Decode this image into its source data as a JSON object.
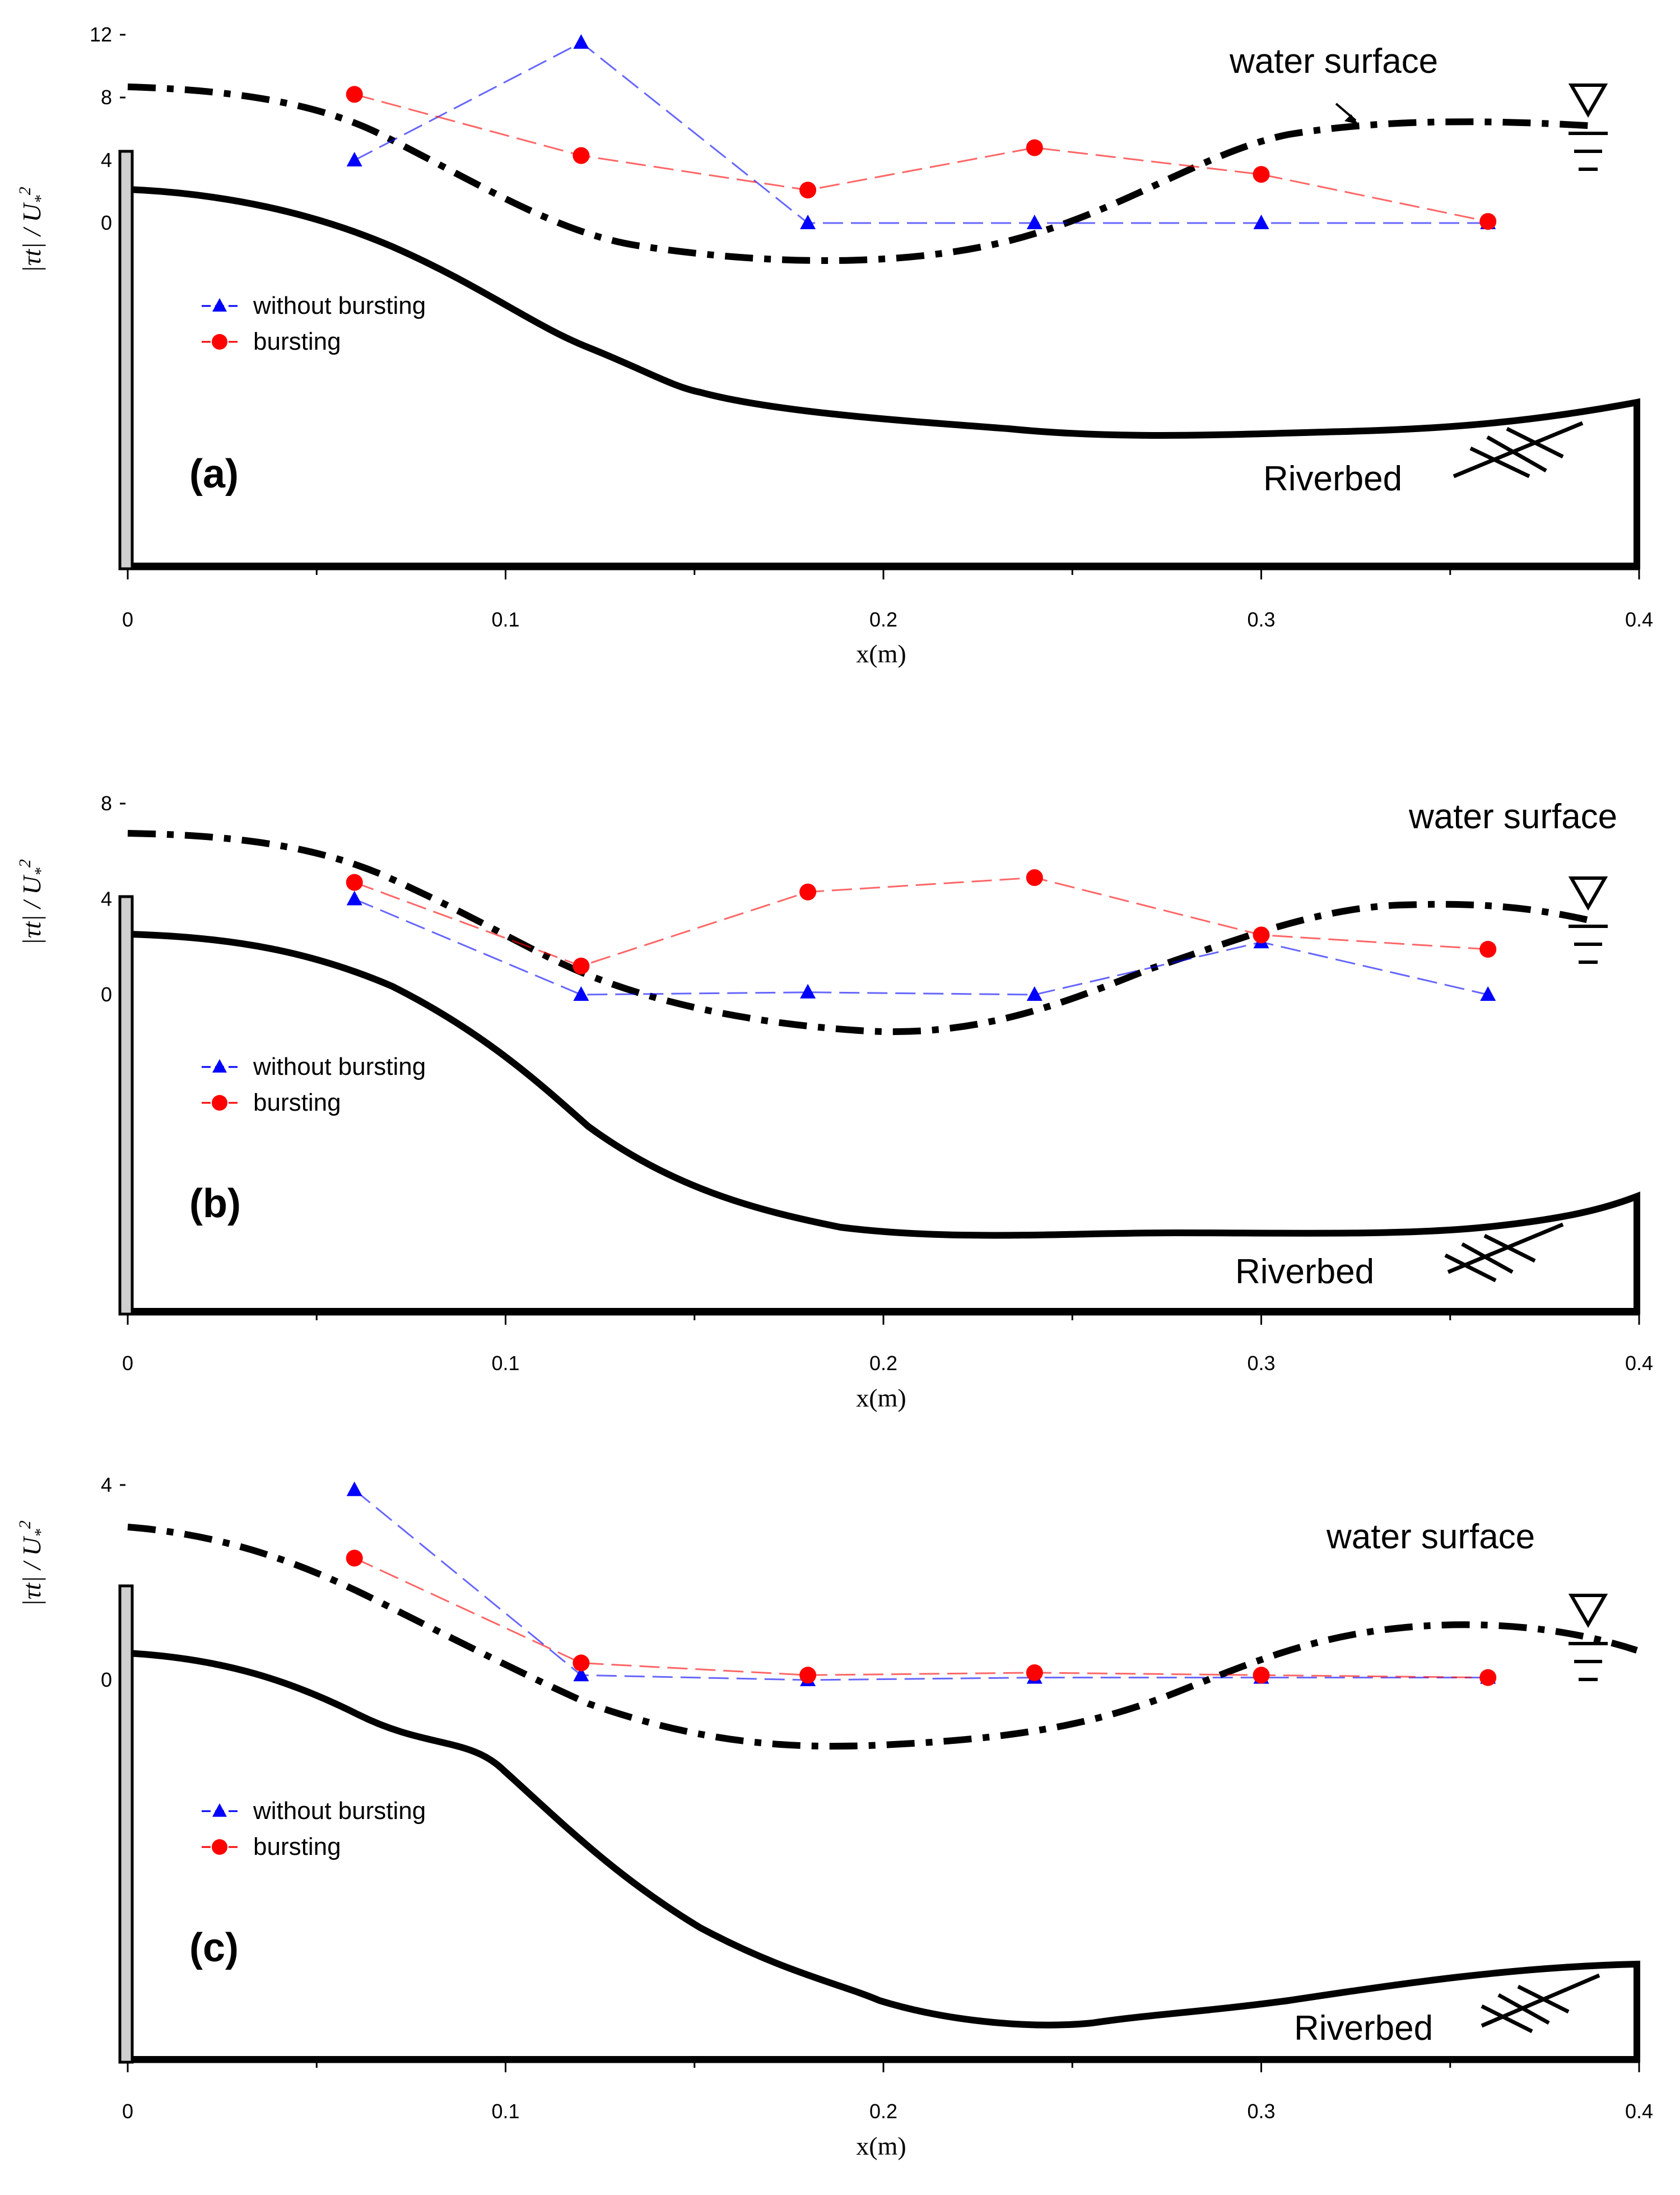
{
  "chart_data": [
    {
      "type": "line",
      "panel_label": "(a)",
      "xlabel": "x(m)",
      "ylabel": "|τt| / U*²",
      "ylabel_main": "τt",
      "ylabel_rest": " / U",
      "ylabel_sub": "*",
      "ylabel_sup": "2",
      "xlim": [
        0,
        0.4
      ],
      "ylim": [
        0,
        12
      ],
      "xticks": [
        "0",
        "0.1",
        "0.2",
        "0.3",
        "0.4"
      ],
      "yticks": [
        "0",
        "4",
        "8",
        "12"
      ],
      "legend": {
        "placement": "left",
        "entries": [
          "without bursting",
          "bursting"
        ]
      },
      "series": [
        {
          "name": "without bursting",
          "color": "#0000ff",
          "marker": "triangle",
          "x": [
            0.06,
            0.12,
            0.18,
            0.24,
            0.3,
            0.36
          ],
          "y": [
            4,
            11.5,
            0,
            0,
            0,
            0
          ]
        },
        {
          "name": "bursting",
          "color": "#ff0000",
          "marker": "circle",
          "x": [
            0.06,
            0.12,
            0.18,
            0.24,
            0.3,
            0.36
          ],
          "y": [
            8.2,
            4.3,
            2.1,
            4.8,
            3.1,
            0.1
          ]
        }
      ],
      "annotations": {
        "water_surface": "water surface",
        "riverbed": "Riverbed"
      }
    },
    {
      "type": "line",
      "panel_label": "(b)",
      "xlabel": "x(m)",
      "ylabel": "|τt| / U*²",
      "ylabel_main": "τt",
      "ylabel_rest": " / U",
      "ylabel_sub": "*",
      "ylabel_sup": "2",
      "xlim": [
        0,
        0.4
      ],
      "ylim": [
        0,
        8
      ],
      "xticks": [
        "0",
        "0.1",
        "0.2",
        "0.3",
        "0.4"
      ],
      "yticks": [
        "0",
        "4",
        "8"
      ],
      "legend": {
        "placement": "left",
        "entries": [
          "without bursting",
          "bursting"
        ]
      },
      "series": [
        {
          "name": "without bursting",
          "color": "#0000ff",
          "marker": "triangle",
          "x": [
            0.06,
            0.12,
            0.18,
            0.24,
            0.3,
            0.36
          ],
          "y": [
            4.0,
            0,
            0.1,
            0,
            2.2,
            0
          ]
        },
        {
          "name": "bursting",
          "color": "#ff0000",
          "marker": "circle",
          "x": [
            0.06,
            0.12,
            0.18,
            0.24,
            0.3,
            0.36
          ],
          "y": [
            4.7,
            1.2,
            4.3,
            4.9,
            2.5,
            1.9
          ]
        }
      ],
      "annotations": {
        "water_surface": "water surface",
        "riverbed": "Riverbed"
      }
    },
    {
      "type": "line",
      "panel_label": "(c)",
      "xlabel": "x(m)",
      "ylabel": "|τt| / U*²",
      "ylabel_main": "τt",
      "ylabel_rest": " / U",
      "ylabel_sub": "*",
      "ylabel_sup": "2",
      "xlim": [
        0,
        0.4
      ],
      "ylim": [
        0,
        4
      ],
      "xticks": [
        "0",
        "0.1",
        "0.2",
        "0.3",
        "0.4"
      ],
      "yticks": [
        "0",
        "4"
      ],
      "legend": {
        "placement": "left",
        "entries": [
          "without bursting",
          "bursting"
        ]
      },
      "series": [
        {
          "name": "without bursting",
          "color": "#0000ff",
          "marker": "triangle",
          "x": [
            0.06,
            0.12,
            0.18,
            0.24,
            0.3,
            0.36
          ],
          "y": [
            3.9,
            0.1,
            0.0,
            0.05,
            0.05,
            0.05
          ]
        },
        {
          "name": "bursting",
          "color": "#ff0000",
          "marker": "circle",
          "x": [
            0.06,
            0.12,
            0.18,
            0.24,
            0.3,
            0.36
          ],
          "y": [
            2.5,
            0.35,
            0.1,
            0.15,
            0.1,
            0.05
          ]
        }
      ],
      "annotations": {
        "water_surface": "water surface",
        "riverbed": "Riverbed"
      }
    }
  ]
}
